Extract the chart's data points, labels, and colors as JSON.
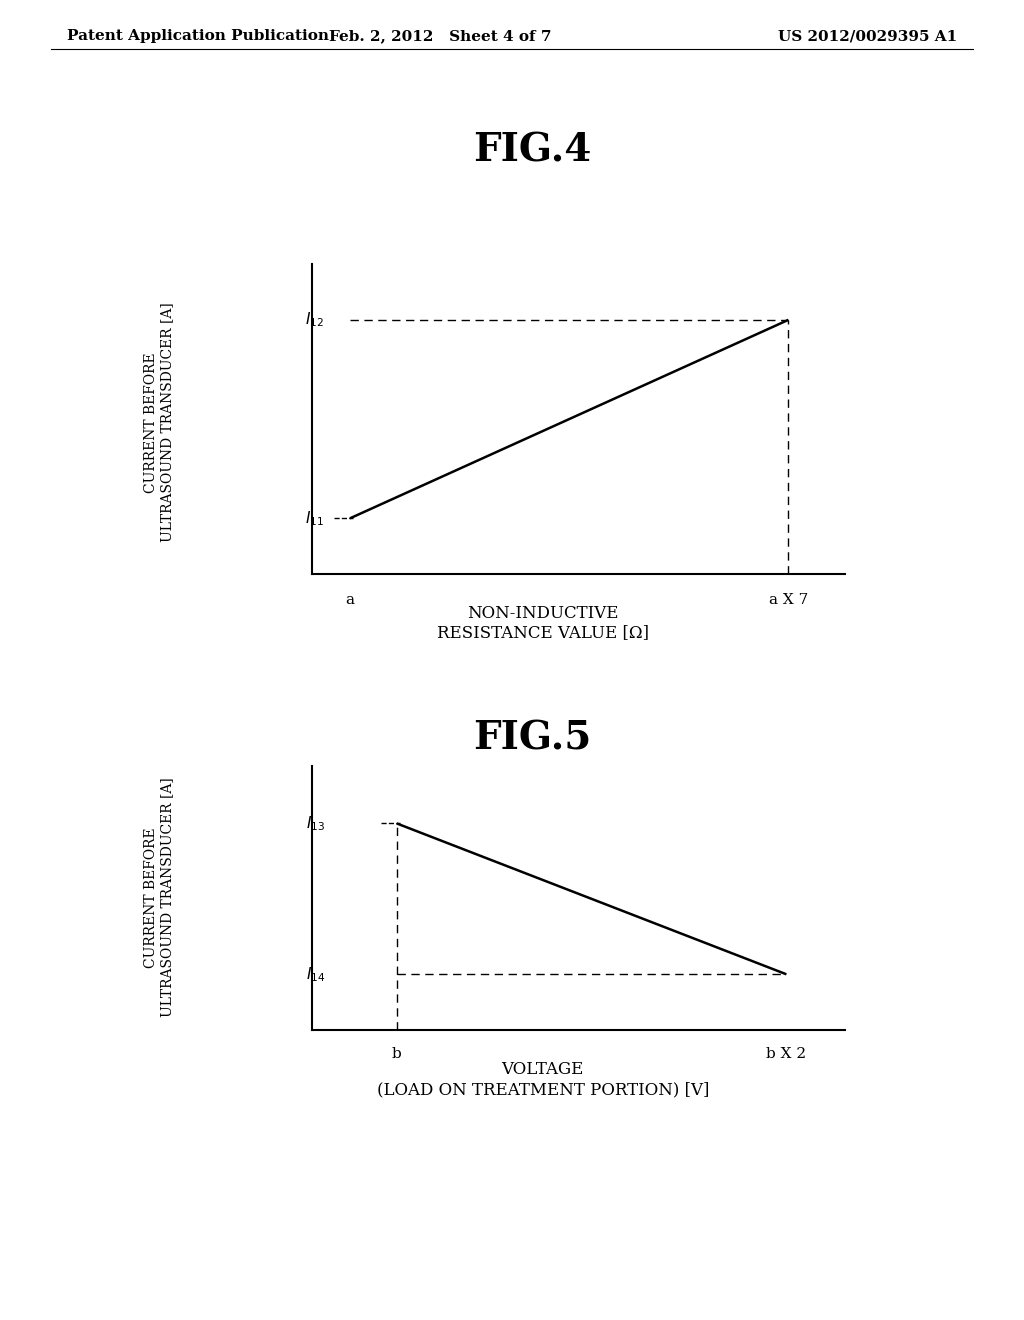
{
  "bg_color": "#ffffff",
  "header_left": "Patent Application Publication",
  "header_mid": "Feb. 2, 2012   Sheet 4 of 7",
  "header_right": "US 2012/0029395 A1",
  "fig4_title": "FIG.4",
  "fig5_title": "FIG.5",
  "fig4_ylabel_line1": "CURRENT BEFORE",
  "fig4_ylabel_line2": "ULTRASOUND TRANSDUCER [A]",
  "fig4_xlabel_line1": "NON-INDUCTIVE",
  "fig4_xlabel_line2": "RESISTANCE VALUE [Ω]",
  "fig4_x_start_label": "a",
  "fig4_x_end_label": "a X 7",
  "fig4_y_low_label": "I11",
  "fig4_y_high_label": "I12",
  "fig5_ylabel_line1": "CURRENT BEFORE",
  "fig5_ylabel_line2": "ULTRASOUND TRANSDUCER [A]",
  "fig5_xlabel_line1": "VOLTAGE",
  "fig5_xlabel_line2": "(LOAD ON TREATMENT PORTION) [V]",
  "fig5_x_start_label": "b",
  "fig5_x_end_label": "b X 2",
  "fig5_y_low_label": "I14",
  "fig5_y_high_label": "I13",
  "line_color": "#000000",
  "dashed_color": "#000000",
  "header_fontsize": 11,
  "fig_title_fontsize": 28,
  "axis_label_fontsize": 10,
  "tick_label_fontsize": 11,
  "xlabel_fontsize": 12
}
